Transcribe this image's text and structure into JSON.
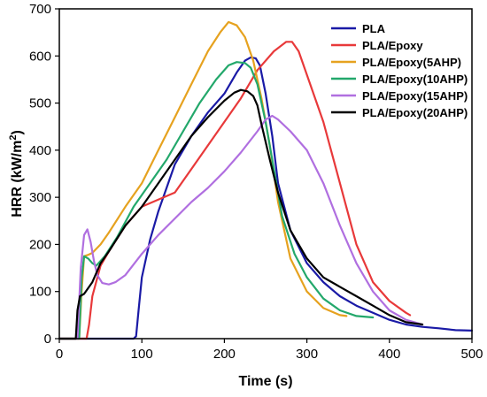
{
  "chart_data": {
    "type": "line",
    "title": "",
    "xlabel": "Time (s)",
    "ylabel_main": "HRR (kW/m",
    "ylabel_sup": "2",
    "ylabel_end": ")",
    "xlim": [
      0,
      500
    ],
    "ylim": [
      0,
      700
    ],
    "xticks": [
      0,
      100,
      200,
      300,
      400,
      500
    ],
    "yticks": [
      0,
      100,
      200,
      300,
      400,
      500,
      600,
      700
    ],
    "xtick_labels": [
      "0",
      "100",
      "200",
      "300",
      "400",
      "500"
    ],
    "ytick_labels": [
      "0",
      "100",
      "200",
      "300",
      "400",
      "500",
      "600",
      "700"
    ],
    "grid": false,
    "legend_position": "top-right",
    "series": [
      {
        "name": "PLA",
        "color": "#1a1aa6",
        "x": [
          0,
          90,
          93,
          96,
          100,
          110,
          120,
          140,
          160,
          180,
          200,
          215,
          225,
          232,
          238,
          243,
          250,
          258,
          265,
          280,
          300,
          320,
          340,
          360,
          380,
          400,
          420,
          440,
          460,
          480,
          500
        ],
        "y": [
          0,
          0,
          5,
          60,
          130,
          210,
          270,
          370,
          430,
          480,
          520,
          565,
          590,
          597,
          595,
          580,
          520,
          430,
          330,
          230,
          160,
          120,
          90,
          70,
          55,
          40,
          30,
          25,
          22,
          18,
          17
        ]
      },
      {
        "name": "PLA/Epoxy",
        "color": "#e8393a",
        "x": [
          0,
          33,
          36,
          40,
          50,
          60,
          80,
          100,
          120,
          140,
          160,
          180,
          200,
          220,
          240,
          260,
          275,
          282,
          290,
          300,
          320,
          340,
          360,
          380,
          400,
          420,
          425
        ],
        "y": [
          0,
          0,
          30,
          90,
          155,
          185,
          240,
          280,
          295,
          310,
          360,
          410,
          460,
          510,
          570,
          610,
          630,
          630,
          610,
          560,
          460,
          330,
          200,
          120,
          80,
          55,
          50
        ]
      },
      {
        "name": "PLA/Epoxy(5AHP)",
        "color": "#e6a21f",
        "x": [
          0,
          24,
          27,
          30,
          35,
          40,
          50,
          60,
          80,
          100,
          120,
          140,
          160,
          180,
          195,
          205,
          215,
          225,
          235,
          245,
          255,
          265,
          280,
          300,
          320,
          340,
          348
        ],
        "y": [
          0,
          0,
          100,
          175,
          178,
          182,
          200,
          225,
          280,
          330,
          400,
          470,
          540,
          610,
          650,
          672,
          665,
          640,
          590,
          510,
          410,
          290,
          170,
          100,
          65,
          50,
          48
        ]
      },
      {
        "name": "PLA/Epoxy(10AHP)",
        "color": "#23a86b",
        "x": [
          0,
          24,
          27,
          30,
          35,
          40,
          45,
          55,
          70,
          90,
          110,
          130,
          150,
          170,
          190,
          205,
          215,
          225,
          232,
          240,
          250,
          260,
          270,
          285,
          300,
          320,
          340,
          360,
          380
        ],
        "y": [
          0,
          0,
          130,
          175,
          170,
          160,
          155,
          175,
          215,
          280,
          330,
          380,
          440,
          500,
          550,
          580,
          587,
          585,
          575,
          540,
          460,
          360,
          260,
          180,
          130,
          85,
          60,
          48,
          45
        ]
      },
      {
        "name": "PLA/Epoxy(15AHP)",
        "color": "#b06fe0",
        "x": [
          0,
          22,
          26,
          30,
          34,
          38,
          42,
          46,
          52,
          60,
          68,
          80,
          100,
          120,
          140,
          160,
          180,
          200,
          220,
          240,
          250,
          258,
          265,
          280,
          300,
          320,
          340,
          360,
          380,
          400,
          420,
          440
        ],
        "y": [
          0,
          0,
          150,
          220,
          232,
          205,
          165,
          135,
          118,
          115,
          120,
          135,
          180,
          220,
          255,
          290,
          320,
          355,
          395,
          440,
          465,
          473,
          465,
          440,
          400,
          330,
          240,
          160,
          100,
          60,
          40,
          30
        ]
      },
      {
        "name": "PLA/Epoxy(20AHP)",
        "color": "#000000",
        "x": [
          0,
          20,
          22,
          25,
          30,
          40,
          50,
          60,
          80,
          100,
          120,
          140,
          160,
          180,
          200,
          212,
          220,
          228,
          235,
          240,
          245,
          255,
          265,
          280,
          300,
          320,
          340,
          360,
          380,
          400,
          420,
          440
        ],
        "y": [
          0,
          0,
          60,
          90,
          95,
          120,
          160,
          185,
          240,
          280,
          330,
          380,
          430,
          470,
          505,
          522,
          528,
          525,
          515,
          495,
          455,
          380,
          310,
          230,
          170,
          130,
          110,
          90,
          70,
          50,
          35,
          30
        ]
      }
    ]
  }
}
